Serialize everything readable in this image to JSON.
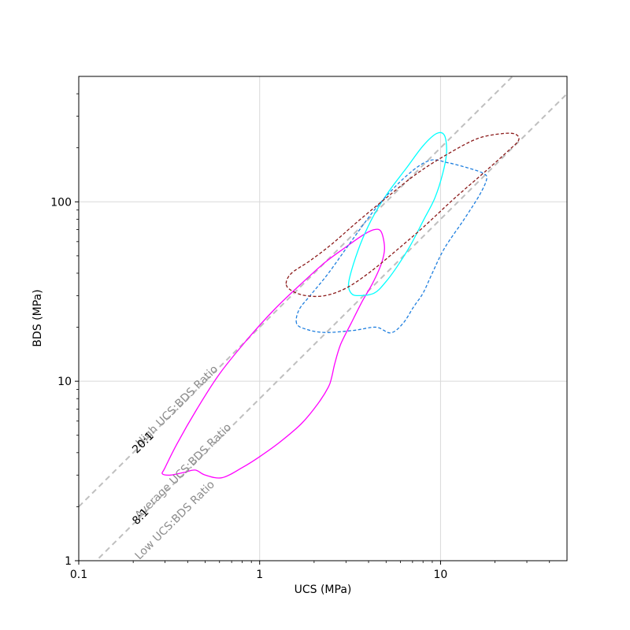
{
  "chart_data": {
    "type": "line",
    "xlabel": "UCS (MPa)",
    "ylabel": "BDS (MPa)",
    "xscale": "log",
    "yscale": "log",
    "xlim": [
      0.1,
      50
    ],
    "ylim": [
      1,
      500
    ],
    "grid": true,
    "x_ticks": [
      {
        "value": 0.1,
        "label": "0.1"
      },
      {
        "value": 1,
        "label": "1"
      },
      {
        "value": 10,
        "label": "10"
      }
    ],
    "y_ticks": [
      {
        "value": 1,
        "label": "1"
      },
      {
        "value": 10,
        "label": "10"
      },
      {
        "value": 100,
        "label": "100"
      }
    ],
    "reference_lines": [
      {
        "label": "High UCS:BDS Ratio",
        "ratio_label": "20:1",
        "slope": 20,
        "color": "#bfbfbf"
      },
      {
        "label": "Average UCS:BDS Ratio",
        "ratio_label": "8:1",
        "slope": 8,
        "color": "#bfbfbf"
      }
    ],
    "band_label": "Low UCS:BDS Ratio",
    "series": [
      {
        "color": "#ff00ff",
        "dashed": false,
        "points": [
          [
            0.29,
            3.05
          ],
          [
            0.3,
            3.3
          ],
          [
            0.35,
            4.5
          ],
          [
            0.45,
            7
          ],
          [
            0.6,
            11
          ],
          [
            0.85,
            17
          ],
          [
            1.2,
            25
          ],
          [
            1.7,
            35
          ],
          [
            2.3,
            46
          ],
          [
            3.0,
            56
          ],
          [
            3.7,
            65
          ],
          [
            4.3,
            70
          ],
          [
            4.7,
            68
          ],
          [
            4.9,
            55
          ],
          [
            4.7,
            45
          ],
          [
            4.2,
            35
          ],
          [
            3.7,
            28
          ],
          [
            3.2,
            21
          ],
          [
            2.8,
            16
          ],
          [
            2.6,
            12.5
          ],
          [
            2.5,
            10.5
          ],
          [
            2.4,
            9.3
          ],
          [
            2.1,
            7.5
          ],
          [
            1.7,
            5.8
          ],
          [
            1.3,
            4.6
          ],
          [
            1.0,
            3.8
          ],
          [
            0.8,
            3.3
          ],
          [
            0.62,
            2.9
          ],
          [
            0.5,
            3.0
          ],
          [
            0.44,
            3.2
          ],
          [
            0.38,
            3.1
          ],
          [
            0.32,
            3.0
          ],
          [
            0.29,
            3.05
          ]
        ]
      },
      {
        "color": "#00ffff",
        "dashed": false,
        "points": [
          [
            3.2,
            31
          ],
          [
            3.1,
            35
          ],
          [
            3.3,
            45
          ],
          [
            3.7,
            62
          ],
          [
            4.3,
            85
          ],
          [
            5.2,
            115
          ],
          [
            6.5,
            155
          ],
          [
            8.0,
            205
          ],
          [
            9.5,
            240
          ],
          [
            10.5,
            235
          ],
          [
            10.8,
            190
          ],
          [
            10.3,
            145
          ],
          [
            9.3,
            105
          ],
          [
            8.1,
            80
          ],
          [
            6.8,
            57
          ],
          [
            5.7,
            43
          ],
          [
            5.0,
            36
          ],
          [
            4.3,
            31
          ],
          [
            3.5,
            30
          ],
          [
            3.2,
            31
          ]
        ]
      },
      {
        "color": "#1f7fdf",
        "dashed": true,
        "points": [
          [
            1.6,
            21
          ],
          [
            1.65,
            25
          ],
          [
            1.9,
            30
          ],
          [
            2.4,
            40
          ],
          [
            3.2,
            60
          ],
          [
            4.5,
            95
          ],
          [
            6.5,
            140
          ],
          [
            8.7,
            170
          ],
          [
            11,
            165
          ],
          [
            14,
            155
          ],
          [
            17,
            145
          ],
          [
            18,
            135
          ],
          [
            16.5,
            110
          ],
          [
            13.5,
            80
          ],
          [
            10.5,
            55
          ],
          [
            9.0,
            40
          ],
          [
            8.0,
            31
          ],
          [
            7.1,
            26
          ],
          [
            6.2,
            21
          ],
          [
            5.3,
            18.6
          ],
          [
            4.4,
            20
          ],
          [
            3.3,
            19.2
          ],
          [
            2.3,
            18.7
          ],
          [
            1.8,
            19.5
          ],
          [
            1.6,
            21
          ]
        ]
      },
      {
        "color": "#8b1a1a",
        "dashed": true,
        "points": [
          [
            1.4,
            35
          ],
          [
            1.5,
            40
          ],
          [
            1.9,
            47
          ],
          [
            2.5,
            58
          ],
          [
            3.4,
            76
          ],
          [
            5,
            105
          ],
          [
            7.5,
            145
          ],
          [
            11,
            185
          ],
          [
            16,
            225
          ],
          [
            22,
            240
          ],
          [
            26,
            238
          ],
          [
            27,
            220
          ],
          [
            24,
            195
          ],
          [
            18,
            150
          ],
          [
            12,
            105
          ],
          [
            8,
            72
          ],
          [
            5.5,
            52
          ],
          [
            4,
            40
          ],
          [
            3,
            33
          ],
          [
            2.3,
            30
          ],
          [
            1.8,
            30
          ],
          [
            1.5,
            32
          ],
          [
            1.4,
            35
          ]
        ]
      }
    ]
  }
}
